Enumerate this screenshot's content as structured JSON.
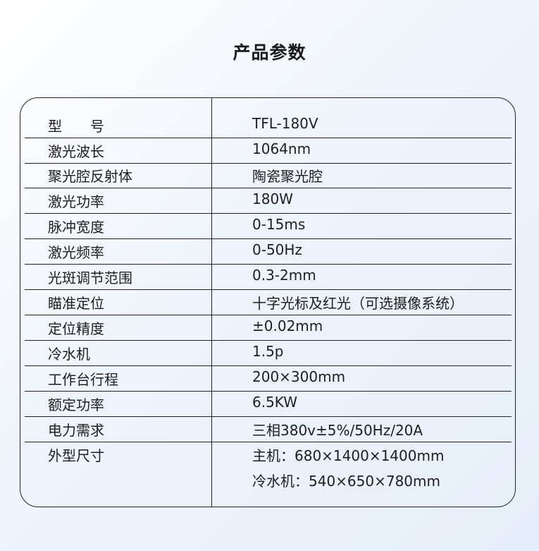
{
  "title": "产品参数",
  "rows": [
    {
      "label": "型　　号",
      "value": "TFL-180V"
    },
    {
      "label": "激光波长",
      "value": "1064nm"
    },
    {
      "label": "聚光腔反射体",
      "value": "陶瓷聚光腔"
    },
    {
      "label": "激光功率",
      "value": "180W"
    },
    {
      "label": "脉冲宽度",
      "value": "0-15ms"
    },
    {
      "label": "激光频率",
      "value": "0-50Hz"
    },
    {
      "label": "光斑调节范围",
      "value": "0.3-2mm"
    },
    {
      "label": "瞄准定位",
      "value": "十字光标及红光（可选摄像系统）"
    },
    {
      "label": "定位精度",
      "value": "±0.02mm"
    },
    {
      "label": "冷水机",
      "value": "1.5p"
    },
    {
      "label": "工作台行程",
      "value": "200×300mm"
    },
    {
      "label": "额定功率",
      "value": "6.5KW"
    },
    {
      "label": "电力需求",
      "value": "三相380v±5%/50Hz/20A"
    },
    {
      "label": "外型尺寸",
      "value": "主机：680×1400×1400mm",
      "value2": "冷水机：540×650×780mm"
    }
  ]
}
